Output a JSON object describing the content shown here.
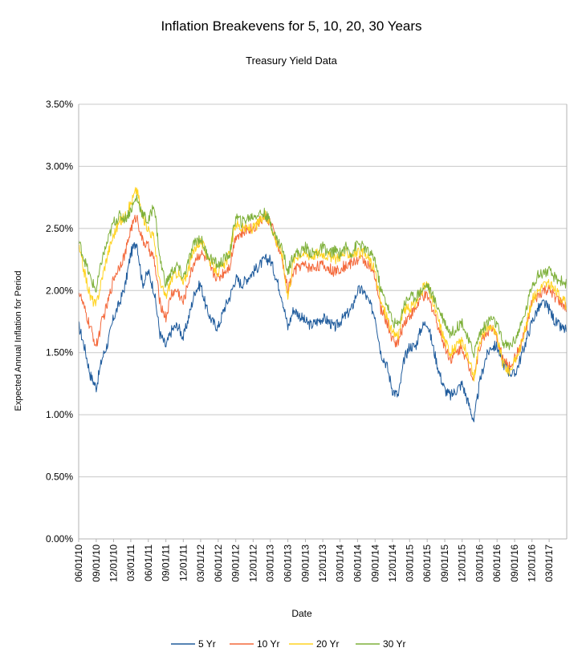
{
  "chart_data": {
    "type": "line",
    "title": "Inflation Breakevens for 5, 10, 20, 30 Years",
    "subtitle": "Treasury Yield Data",
    "xlabel": "Date",
    "ylabel": "Expected Annual Inflation for Period",
    "ylim": [
      0,
      3.5
    ],
    "y_ticks": [
      "0.00%",
      "0.50%",
      "1.00%",
      "1.50%",
      "2.00%",
      "2.50%",
      "3.00%",
      "3.50%"
    ],
    "x_start": "06/01/10",
    "x_end": "06/01/17",
    "x_ticks": [
      "06/01/10",
      "09/01/10",
      "12/01/10",
      "03/01/11",
      "06/01/11",
      "09/01/11",
      "12/01/11",
      "03/01/12",
      "06/01/12",
      "09/01/12",
      "12/01/12",
      "03/01/13",
      "06/01/13",
      "09/01/13",
      "12/01/13",
      "03/01/14",
      "06/01/14",
      "09/01/14",
      "12/01/14",
      "03/01/15",
      "06/01/15",
      "09/01/15",
      "12/01/15",
      "03/01/16",
      "06/01/16",
      "09/01/16",
      "12/01/16",
      "03/01/17"
    ],
    "grid": "horizontal",
    "legend": "bottom",
    "x": [
      "06/01/10",
      "07/01/10",
      "08/01/10",
      "09/01/10",
      "10/01/10",
      "11/01/10",
      "12/01/10",
      "01/01/11",
      "02/01/11",
      "03/01/11",
      "04/01/11",
      "05/01/11",
      "06/01/11",
      "07/01/11",
      "08/01/11",
      "09/01/11",
      "10/01/11",
      "11/01/11",
      "12/01/11",
      "01/01/12",
      "02/01/12",
      "03/01/12",
      "04/01/12",
      "05/01/12",
      "06/01/12",
      "07/01/12",
      "08/01/12",
      "09/01/12",
      "10/01/12",
      "11/01/12",
      "12/01/12",
      "01/01/13",
      "02/01/13",
      "03/01/13",
      "04/01/13",
      "05/01/13",
      "06/01/13",
      "07/01/13",
      "08/01/13",
      "09/01/13",
      "10/01/13",
      "11/01/13",
      "12/01/13",
      "01/01/14",
      "02/01/14",
      "03/01/14",
      "04/01/14",
      "05/01/14",
      "06/01/14",
      "07/01/14",
      "08/01/14",
      "09/01/14",
      "10/01/14",
      "11/01/14",
      "12/01/14",
      "01/01/15",
      "02/01/15",
      "03/01/15",
      "04/01/15",
      "05/01/15",
      "06/01/15",
      "07/01/15",
      "08/01/15",
      "09/01/15",
      "10/01/15",
      "11/01/15",
      "12/01/15",
      "01/01/16",
      "02/01/16",
      "03/01/16",
      "04/01/16",
      "05/01/16",
      "06/01/16",
      "07/01/16",
      "08/01/16",
      "09/01/16",
      "10/01/16",
      "11/01/16",
      "12/01/16",
      "01/01/17",
      "02/01/17",
      "03/01/17",
      "04/01/17",
      "05/01/17",
      "06/01/17"
    ],
    "series": [
      {
        "name": "5 Yr",
        "color": "#1f5b9c",
        "values": [
          1.72,
          1.55,
          1.32,
          1.22,
          1.45,
          1.58,
          1.78,
          1.9,
          2.05,
          2.3,
          2.4,
          2.05,
          2.15,
          2.0,
          1.65,
          1.55,
          1.68,
          1.72,
          1.62,
          1.8,
          2.0,
          2.05,
          1.85,
          1.75,
          1.7,
          1.85,
          1.95,
          2.1,
          2.05,
          2.1,
          2.15,
          2.2,
          2.25,
          2.25,
          2.1,
          1.95,
          1.7,
          1.85,
          1.8,
          1.75,
          1.72,
          1.75,
          1.78,
          1.75,
          1.7,
          1.75,
          1.8,
          1.85,
          2.0,
          2.0,
          1.9,
          1.8,
          1.5,
          1.4,
          1.2,
          1.15,
          1.45,
          1.55,
          1.55,
          1.7,
          1.75,
          1.55,
          1.35,
          1.2,
          1.15,
          1.2,
          1.25,
          1.1,
          0.95,
          1.25,
          1.45,
          1.55,
          1.55,
          1.42,
          1.35,
          1.32,
          1.45,
          1.6,
          1.75,
          1.85,
          1.9,
          1.85,
          1.75,
          1.7,
          1.68
        ]
      },
      {
        "name": "10 Yr",
        "color": "#f4683a",
        "values": [
          2.0,
          1.85,
          1.7,
          1.55,
          1.75,
          1.9,
          2.1,
          2.2,
          2.3,
          2.5,
          2.6,
          2.4,
          2.35,
          2.25,
          1.9,
          1.78,
          1.98,
          2.0,
          1.9,
          2.1,
          2.25,
          2.3,
          2.25,
          2.15,
          2.1,
          2.15,
          2.2,
          2.45,
          2.45,
          2.5,
          2.5,
          2.55,
          2.6,
          2.55,
          2.4,
          2.25,
          2.0,
          2.15,
          2.2,
          2.2,
          2.18,
          2.2,
          2.2,
          2.18,
          2.15,
          2.18,
          2.2,
          2.22,
          2.25,
          2.25,
          2.2,
          2.1,
          1.85,
          1.75,
          1.6,
          1.58,
          1.75,
          1.8,
          1.85,
          1.95,
          1.95,
          1.85,
          1.7,
          1.55,
          1.45,
          1.5,
          1.55,
          1.4,
          1.3,
          1.55,
          1.65,
          1.7,
          1.62,
          1.45,
          1.38,
          1.45,
          1.55,
          1.7,
          1.9,
          1.95,
          2.0,
          2.0,
          1.95,
          1.9,
          1.85
        ]
      },
      {
        "name": "20 Yr",
        "color": "#ffd320",
        "values": [
          2.35,
          2.15,
          1.95,
          1.88,
          2.1,
          2.3,
          2.45,
          2.55,
          2.6,
          2.7,
          2.82,
          2.6,
          2.5,
          2.42,
          2.05,
          1.95,
          2.1,
          2.15,
          2.05,
          2.2,
          2.35,
          2.4,
          2.3,
          2.2,
          2.15,
          2.2,
          2.3,
          2.55,
          2.5,
          2.5,
          2.5,
          2.55,
          2.6,
          2.55,
          2.4,
          2.3,
          1.95,
          2.25,
          2.3,
          2.3,
          2.28,
          2.3,
          2.3,
          2.28,
          2.25,
          2.28,
          2.3,
          2.3,
          2.3,
          2.3,
          2.25,
          2.15,
          1.9,
          1.8,
          1.65,
          1.65,
          1.85,
          1.85,
          1.9,
          2.0,
          2.05,
          1.9,
          1.75,
          1.6,
          1.5,
          1.55,
          1.6,
          1.45,
          1.3,
          1.6,
          1.68,
          1.72,
          1.62,
          1.42,
          1.35,
          1.42,
          1.55,
          1.72,
          1.92,
          2.0,
          2.05,
          2.05,
          2.0,
          1.95,
          1.88
        ]
      },
      {
        "name": "30 Yr",
        "color": "#7eb03a",
        "values": [
          2.4,
          2.25,
          2.1,
          2.0,
          2.25,
          2.4,
          2.55,
          2.6,
          2.58,
          2.65,
          2.75,
          2.62,
          2.55,
          2.7,
          2.25,
          2.05,
          2.15,
          2.2,
          2.1,
          2.25,
          2.4,
          2.42,
          2.3,
          2.25,
          2.2,
          2.25,
          2.3,
          2.6,
          2.55,
          2.58,
          2.6,
          2.62,
          2.62,
          2.55,
          2.42,
          2.35,
          2.15,
          2.3,
          2.3,
          2.35,
          2.3,
          2.3,
          2.35,
          2.3,
          2.32,
          2.3,
          2.35,
          2.3,
          2.38,
          2.35,
          2.3,
          2.25,
          2.0,
          1.9,
          1.75,
          1.72,
          1.9,
          1.95,
          1.95,
          2.0,
          2.05,
          1.95,
          1.85,
          1.75,
          1.65,
          1.7,
          1.75,
          1.6,
          1.5,
          1.65,
          1.72,
          1.78,
          1.72,
          1.58,
          1.55,
          1.6,
          1.7,
          1.85,
          2.05,
          2.12,
          2.15,
          2.15,
          2.1,
          2.08,
          2.05
        ]
      }
    ]
  }
}
